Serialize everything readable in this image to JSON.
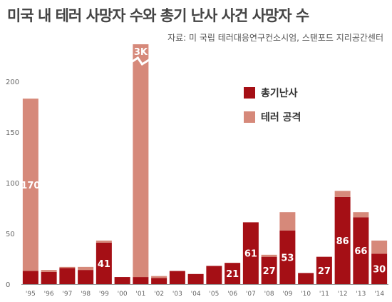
{
  "title": "미국 내 테러 사망자 수와 총기 난사 사건 사망자 수",
  "source": "자료: 미 국립 테러대응연구컨소시엄, 스탠포드 지리공간센터",
  "colors": {
    "shooting": "#a50f15",
    "terror": "#d6897a",
    "axis": "#666666"
  },
  "chart_data": {
    "type": "bar",
    "stacked": true,
    "categories": [
      "'95",
      "'96",
      "'97",
      "'98",
      "'99",
      "'00",
      "'01",
      "'02",
      "'03",
      "'04",
      "'05",
      "'06",
      "'07",
      "'08",
      "'09",
      "'10",
      "'11",
      "'12",
      "'13",
      "'14"
    ],
    "series": [
      {
        "name": "총기난사",
        "values": [
          13,
          12,
          16,
          14,
          41,
          7,
          7,
          6,
          13,
          10,
          18,
          21,
          61,
          27,
          53,
          11,
          27,
          86,
          66,
          30
        ]
      },
      {
        "name": "테러 공격",
        "values": [
          170,
          2,
          1,
          3,
          2,
          0,
          2977,
          2,
          0,
          0,
          0,
          0,
          0,
          2,
          18,
          0,
          0,
          6,
          5,
          13
        ]
      }
    ],
    "data_labels": [
      {
        "category": "'95",
        "series": "테러 공격",
        "text": "170"
      },
      {
        "category": "'99",
        "series": "총기난사",
        "text": "41"
      },
      {
        "category": "'01",
        "series": "테러 공격",
        "text": "3K"
      },
      {
        "category": "'06",
        "series": "총기난사",
        "text": "21"
      },
      {
        "category": "'07",
        "series": "총기난사",
        "text": "61"
      },
      {
        "category": "'08",
        "series": "총기난사",
        "text": "27"
      },
      {
        "category": "'09",
        "series": "총기난사",
        "text": "53"
      },
      {
        "category": "'11",
        "series": "총기난사",
        "text": "27"
      },
      {
        "category": "'12",
        "series": "총기난사",
        "text": "86"
      },
      {
        "category": "'13",
        "series": "총기난사",
        "text": "66"
      },
      {
        "category": "'14",
        "series": "총기난사",
        "text": "30"
      }
    ],
    "y_ticks": [
      0,
      50,
      100,
      150,
      200
    ],
    "ylim": [
      0,
      200
    ],
    "axis_break": {
      "category": "'01"
    },
    "grid": false,
    "legend_position": "top-right"
  }
}
